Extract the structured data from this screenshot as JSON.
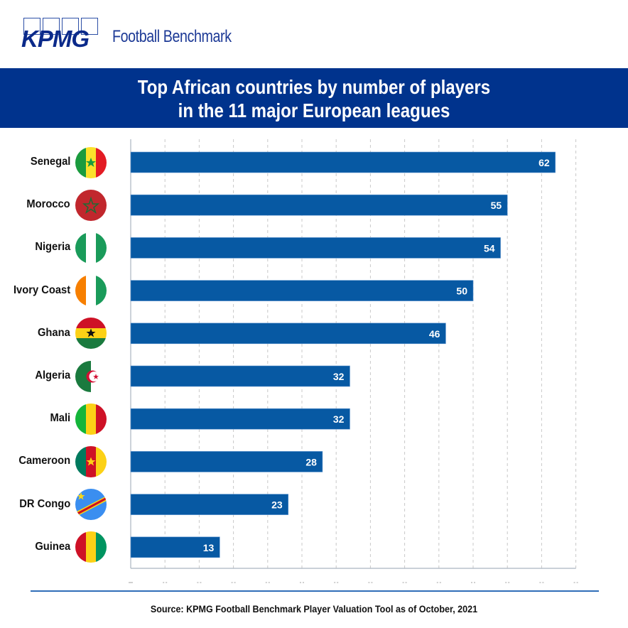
{
  "header": {
    "logo_text": "KPMG",
    "brand_subtitle": "Football Benchmark"
  },
  "banner": {
    "title_line1": "Top African countries by number of players",
    "title_line2": "in the 11 major European leagues"
  },
  "colors": {
    "banner": "#00338d",
    "bar": "#0759a3",
    "bar_label": "#ffffff",
    "gridline": "#c8c8c8",
    "footer_line": "#2f6eb8"
  },
  "chart_data": {
    "type": "bar",
    "orientation": "horizontal",
    "title": "Top African countries by number of players in the 11 major European leagues",
    "xlabel": "",
    "ylabel": "",
    "categories": [
      "Senegal",
      "Morocco",
      "Nigeria",
      "Ivory Coast",
      "Ghana",
      "Algeria",
      "Mali",
      "Cameroon",
      "DR Congo",
      "Guinea"
    ],
    "values": [
      62,
      55,
      54,
      50,
      46,
      32,
      32,
      28,
      23,
      13
    ],
    "flags": [
      "senegal-flag",
      "morocco-flag",
      "nigeria-flag",
      "ivory-coast-flag",
      "ghana-flag",
      "algeria-flag",
      "mali-flag",
      "cameroon-flag",
      "dr-congo-flag",
      "guinea-flag"
    ],
    "xlim": [
      0,
      65
    ],
    "grid_step": 5,
    "grid": true,
    "gridline_style": "dashed vertical",
    "data_labels": true,
    "legend": "none"
  },
  "footer": {
    "source": "Source: KPMG Football Benchmark Player Valuation Tool as of October, 2021"
  }
}
